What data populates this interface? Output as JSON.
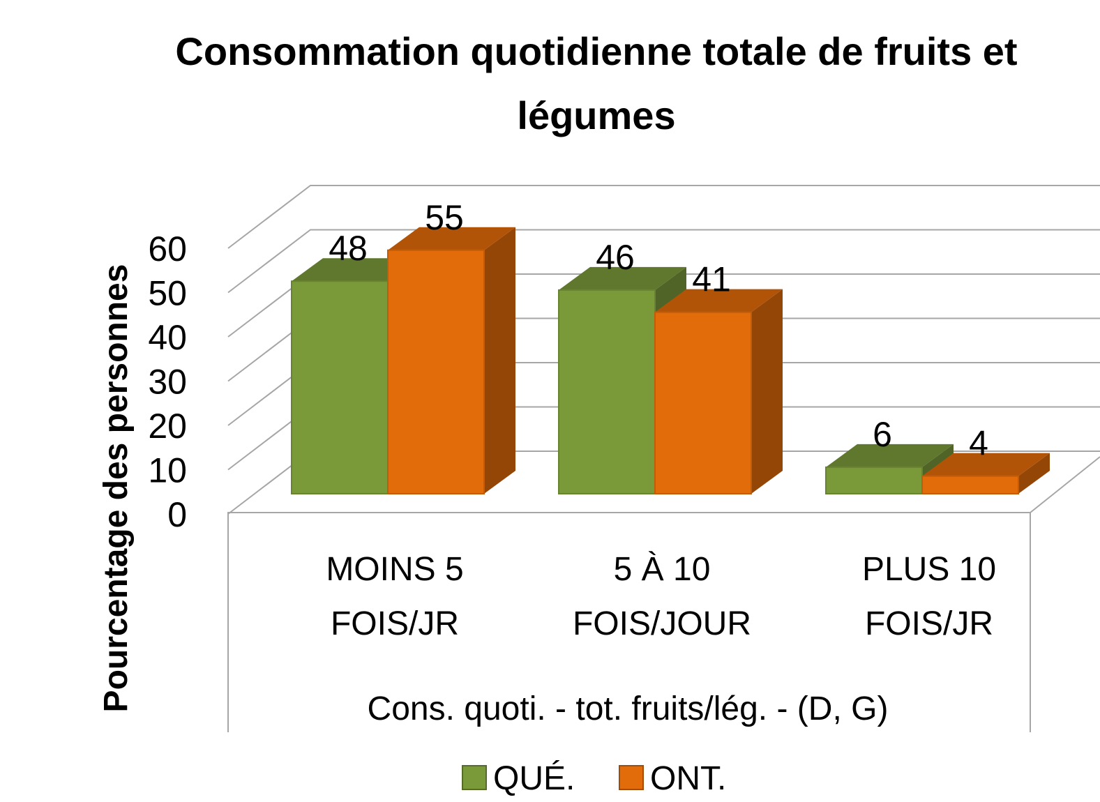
{
  "chart_data": {
    "type": "bar3d",
    "title": "Consommation quotidienne totale de fruits et légumes",
    "x_label": "Cons. quoti. - tot. fruits/lég. - (D, G)",
    "y_label": "Pourcentage des personnes",
    "categories": [
      "MOINS 5 FOIS/JR",
      "5 À 10 FOIS/JOUR",
      "PLUS 10 FOIS/JR"
    ],
    "series": [
      {
        "name": "QUÉ.",
        "color": "#7a9a3a",
        "values": [
          48,
          46,
          6
        ]
      },
      {
        "name": "ONT.",
        "color": "#e36c0a",
        "values": [
          55,
          41,
          4
        ]
      }
    ],
    "ylim": [
      0,
      60
    ],
    "yticks": [
      0,
      10,
      20,
      30,
      40,
      50,
      60
    ],
    "grid": true,
    "legend": "bottom"
  }
}
